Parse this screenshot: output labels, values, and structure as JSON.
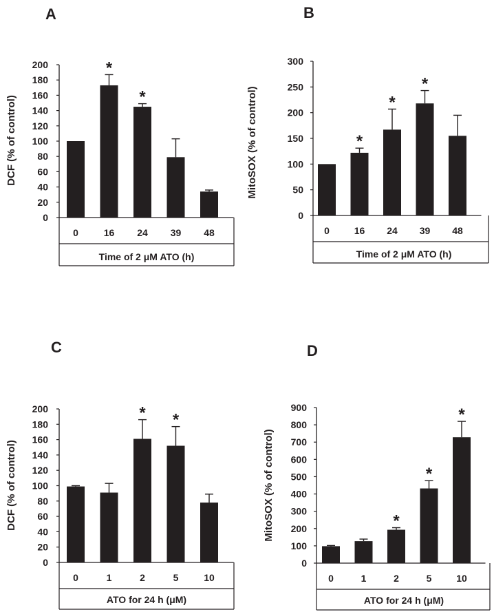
{
  "chart_data": [
    {
      "panel": "A",
      "type": "bar",
      "xlabel": "Time of 2 μM ATO (h)",
      "ylabel": "DCF (% of control)",
      "categories": [
        "0",
        "16",
        "24",
        "39",
        "48"
      ],
      "values": [
        100,
        173,
        145,
        79,
        34
      ],
      "errors": [
        0,
        14,
        4,
        24,
        2
      ],
      "significant": [
        false,
        true,
        true,
        false,
        false
      ],
      "ylim": [
        0,
        200
      ],
      "yticks": [
        "0",
        "20",
        "40",
        "60",
        "80",
        "100",
        "120",
        "140",
        "160",
        "180",
        "200"
      ],
      "marker": "*",
      "color": "#231f20"
    },
    {
      "panel": "B",
      "type": "bar",
      "xlabel": "Time of 2 μM ATO (h)",
      "ylabel": "MitoSOX (% of control)",
      "categories": [
        "0",
        "16",
        "24",
        "39",
        "48"
      ],
      "values": [
        100,
        122,
        167,
        218,
        155
      ],
      "errors": [
        0,
        9,
        40,
        25,
        40
      ],
      "significant": [
        false,
        true,
        true,
        true,
        false
      ],
      "ylim": [
        0,
        300
      ],
      "yticks": [
        "0",
        "50",
        "100",
        "150",
        "200",
        "250",
        "300"
      ],
      "marker": "*",
      "color": "#231f20"
    },
    {
      "panel": "C",
      "type": "bar",
      "xlabel": "ATO for 24 h (μM)",
      "ylabel": "DCF (% of control)",
      "categories": [
        "0",
        "1",
        "2",
        "5",
        "10"
      ],
      "values": [
        99,
        91,
        161,
        152,
        78
      ],
      "errors": [
        1,
        12,
        25,
        25,
        11
      ],
      "significant": [
        false,
        false,
        true,
        true,
        false
      ],
      "ylim": [
        0,
        200
      ],
      "yticks": [
        "0",
        "20",
        "40",
        "60",
        "80",
        "100",
        "120",
        "140",
        "160",
        "180",
        "200"
      ],
      "marker": "*",
      "color": "#231f20"
    },
    {
      "panel": "D",
      "type": "bar",
      "xlabel": "ATO for 24 h (μM)",
      "ylabel": "MitoSOX (% of control)",
      "categories": [
        "0",
        "1",
        "2",
        "5",
        "10"
      ],
      "values": [
        98,
        127,
        193,
        432,
        728
      ],
      "errors": [
        4,
        12,
        12,
        45,
        92
      ],
      "significant": [
        false,
        false,
        true,
        true,
        true
      ],
      "ylim": [
        0,
        900
      ],
      "yticks": [
        "0",
        "100",
        "200",
        "300",
        "400",
        "500",
        "600",
        "700",
        "800",
        "900"
      ],
      "marker": "*",
      "color": "#231f20"
    }
  ]
}
